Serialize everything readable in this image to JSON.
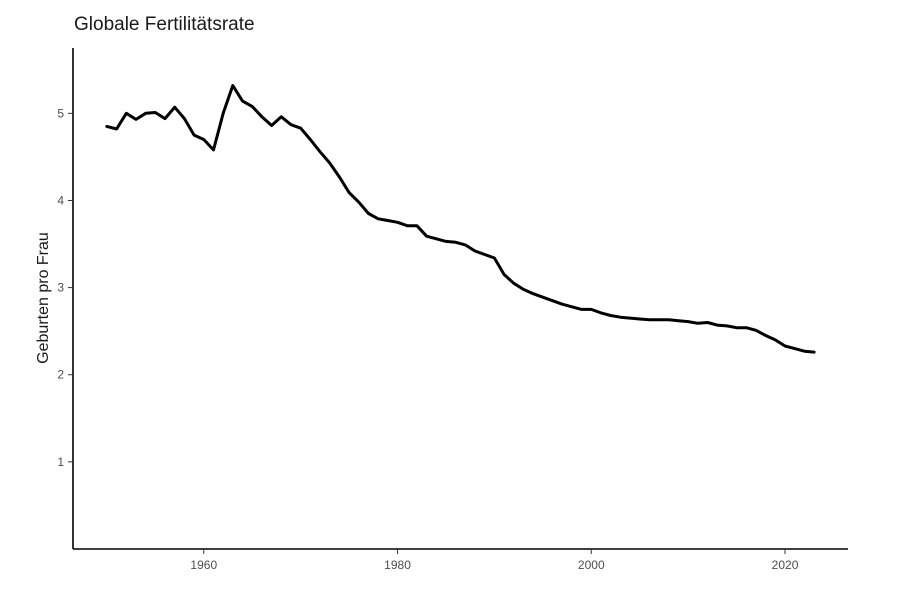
{
  "chart_data": {
    "type": "line",
    "title": "Globale Fertilitätsrate",
    "xlabel": "",
    "ylabel": "Geburten pro Frau",
    "xlim": [
      1946.5,
      2026.5
    ],
    "ylim": [
      0,
      5.75
    ],
    "x_ticks": [
      1960,
      1980,
      2000,
      2020
    ],
    "y_ticks": [
      1,
      2,
      3,
      4,
      5
    ],
    "grid": false,
    "legend": "none",
    "series": [
      {
        "color": "#000000",
        "x": [
          1950,
          1951,
          1952,
          1953,
          1954,
          1955,
          1956,
          1957,
          1958,
          1959,
          1960,
          1961,
          1962,
          1963,
          1964,
          1965,
          1966,
          1967,
          1968,
          1969,
          1970,
          1971,
          1972,
          1973,
          1974,
          1975,
          1976,
          1977,
          1978,
          1979,
          1980,
          1981,
          1982,
          1983,
          1984,
          1985,
          1986,
          1987,
          1988,
          1989,
          1990,
          1991,
          1992,
          1993,
          1994,
          1995,
          1996,
          1997,
          1998,
          1999,
          2000,
          2001,
          2002,
          2003,
          2004,
          2005,
          2006,
          2007,
          2008,
          2009,
          2010,
          2011,
          2012,
          2013,
          2014,
          2015,
          2016,
          2017,
          2018,
          2019,
          2020,
          2021,
          2022,
          2023
        ],
        "y": [
          4.85,
          4.82,
          5.0,
          4.93,
          5.0,
          5.01,
          4.94,
          5.07,
          4.94,
          4.75,
          4.7,
          4.58,
          5.0,
          5.32,
          5.14,
          5.08,
          4.96,
          4.86,
          4.96,
          4.87,
          4.83,
          4.7,
          4.56,
          4.43,
          4.27,
          4.09,
          3.98,
          3.85,
          3.79,
          3.77,
          3.75,
          3.71,
          3.71,
          3.59,
          3.56,
          3.53,
          3.52,
          3.49,
          3.42,
          3.38,
          3.34,
          3.15,
          3.05,
          2.98,
          2.93,
          2.89,
          2.85,
          2.81,
          2.78,
          2.75,
          2.75,
          2.71,
          2.68,
          2.66,
          2.65,
          2.64,
          2.63,
          2.63,
          2.63,
          2.62,
          2.61,
          2.59,
          2.6,
          2.57,
          2.56,
          2.54,
          2.54,
          2.51,
          2.45,
          2.4,
          2.33,
          2.3,
          2.27,
          2.26
        ]
      }
    ]
  }
}
